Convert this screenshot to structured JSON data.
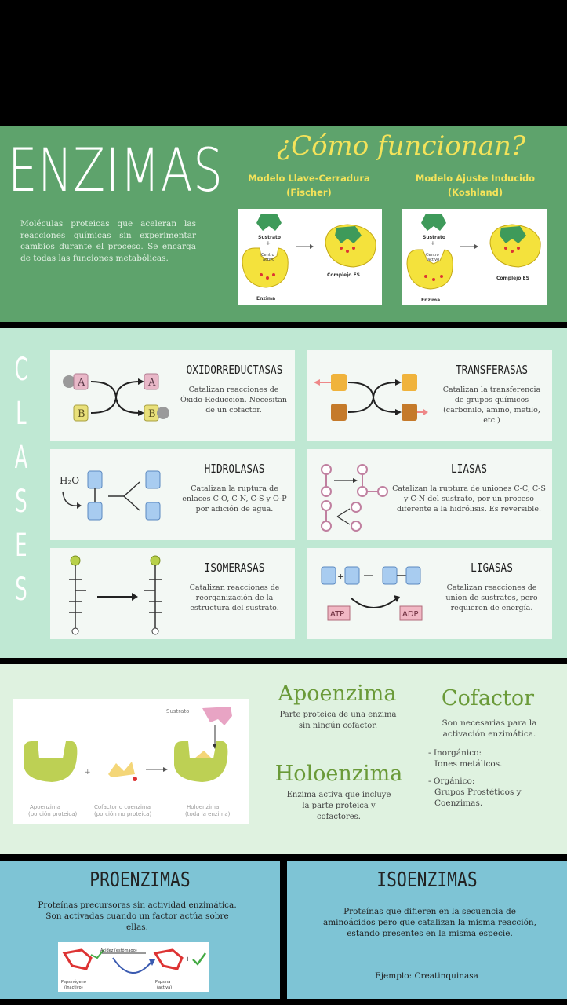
{
  "header": {
    "title": "ENZIMAS",
    "intro": "Moléculas proteicas que aceleran las reacciones químicas sin experimentar cambios durante el proceso. Se encarga de todas las funciones metabólicas.",
    "how_title": "¿Cómo funcionan?",
    "model1_line1": "Modelo Llave-Cerradura",
    "model1_line2": "(Fischer)",
    "model2_line1": "Modelo Ajuste Inducido",
    "model2_line2": "(Koshland)",
    "diagram_labels": {
      "sustrato": "Sustrato",
      "centro1": "Centro",
      "centro2": "activo",
      "complejo": "Complejo ES",
      "enzima": "Enzima"
    }
  },
  "clases": {
    "letters": [
      "C",
      "L",
      "A",
      "S",
      "E",
      "S"
    ],
    "oxidorreductasas": {
      "title": "OXIDORREDUCTASAS",
      "desc": "Catalizan reacciones de Óxido-Reducción. Necesitan de un cofactor."
    },
    "transferasas": {
      "title": "TRANSFERASAS",
      "desc": "Catalizan la transferencia de grupos químicos (carbonilo, amino, metilo, etc.)"
    },
    "hidrolasas": {
      "title": "HIDROLASAS",
      "desc": "Catalizan la ruptura de enlaces C-O, C-N, C-S y O-P por adición de agua.",
      "h2o": "H₂O"
    },
    "liasas": {
      "title": "LIASAS",
      "desc": "Catalizan la ruptura de uniones C-C, C-S y C-N del sustrato, por un proceso diferente a la hidrólisis. Es reversible."
    },
    "isomerasas": {
      "title": "ISOMERASAS",
      "desc": "Catalizan reacciones de reorganización de la estructura del sustrato."
    },
    "ligasas": {
      "title": "LIGASAS",
      "desc": "Catalizan reacciones de unión de sustratos, pero requieren de energía.",
      "atp": "ATP",
      "adp": "ADP"
    },
    "letter_a": "A",
    "letter_b": "B"
  },
  "middle": {
    "diagram": {
      "sustrato": "Sustrato",
      "apo1": "Apoenzima",
      "apo2": "(porción proteica)",
      "cof1": "Cofactor o coenzima",
      "cof2": "(porción no proteica)",
      "holo1": "Holoenzima",
      "holo2": "(toda la enzima)"
    },
    "apoenzima": {
      "title": "Apoenzima",
      "desc": "Parte proteica de una enzima sin ningún cofactor."
    },
    "holoenzima": {
      "title": "Holoenzima",
      "desc": "Enzima activa que incluye la parte proteica y cofactores."
    },
    "cofactor": {
      "title": "Cofactor",
      "desc": "Son necesarias para la activación enzimática.",
      "inorg_label": "- Inorgánico:",
      "inorg_value": "Iones metálicos.",
      "org_label": "- Orgánico:",
      "org_value": "Grupos Prostéticos y Coenzimas."
    }
  },
  "proenzimas": {
    "title": "PROENZIMAS",
    "desc": "Proteínas precursoras sin actividad enzimática. Son activadas cuando un factor actúa sobre ellas.",
    "left_label1": "Pepsinógeno",
    "left_label2": "(inactivo)",
    "right_label1": "Pepsina",
    "right_label2": "(activa)",
    "middle_label": "Acidez (estómago)"
  },
  "isoenzimas": {
    "title": "ISOENZIMAS",
    "desc": "Proteínas que difieren en la secuencia de aminoácidos pero que catalizan la misma reacción, estando presentes en la misma especie.",
    "example": "Ejemplo: Creatinquinasa"
  }
}
